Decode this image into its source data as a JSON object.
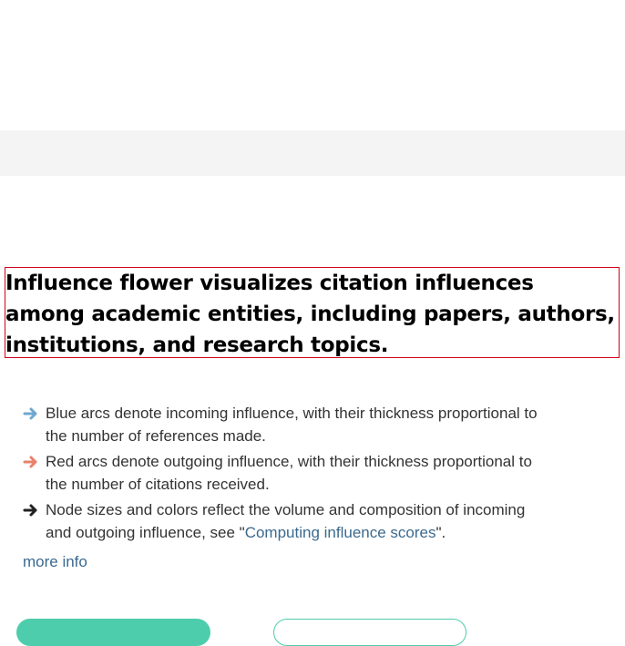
{
  "headline": "Influence flower visualizes citation influences among academic entities, including papers, authors, institutions, and research topics.",
  "bullets": [
    {
      "icon": "arrow-right-blue-icon",
      "color": "#6fa8d1",
      "text": "Blue arcs denote incoming influence, with their thickness proportional to the number of references made."
    },
    {
      "icon": "arrow-right-red-icon",
      "color": "#e8826a",
      "text": "Red arcs denote outgoing influence, with their thickness proportional to the number of citations received."
    },
    {
      "icon": "arrow-right-black-icon",
      "color": "#222222",
      "text_before": "Node sizes and colors reflect the volume and composition of incoming and outgoing influence, see \"",
      "link_text": "Computing influence scores",
      "text_after": "\"."
    }
  ],
  "more_info": "more info",
  "colors": {
    "accent": "#4ecdac",
    "link": "#3b6a8f",
    "highlight_border": "#d0021b",
    "band": "#f4f4f4"
  }
}
